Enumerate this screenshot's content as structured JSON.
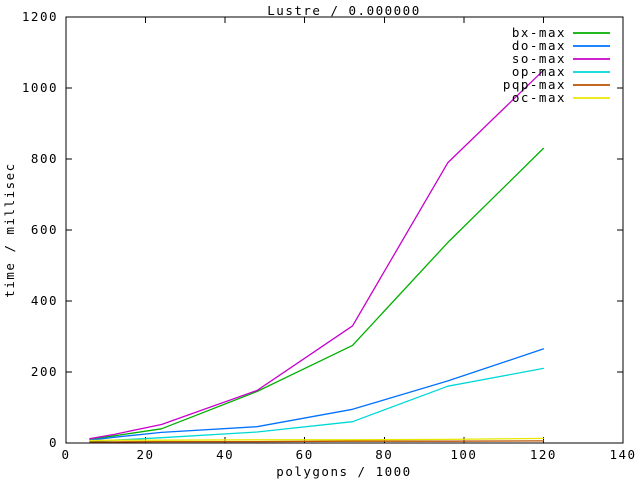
{
  "window": {
    "background": "#ffffff",
    "text_color": "#000000"
  },
  "chart_data": {
    "type": "line",
    "title": "Lustre / 0.000000",
    "xlabel": "polygons / 1000",
    "ylabel": "time / millisec",
    "xlim": [
      0,
      140
    ],
    "ylim": [
      0,
      1200
    ],
    "xticks": [
      0,
      20,
      40,
      60,
      80,
      100,
      120,
      140
    ],
    "yticks": [
      0,
      200,
      400,
      600,
      800,
      1000,
      1200
    ],
    "grid": false,
    "legend_position": "top-right-inside",
    "x": [
      6,
      12,
      24,
      48,
      72,
      96,
      120
    ],
    "series": [
      {
        "name": "bx-max",
        "color": "#00b000",
        "values": [
          10,
          20,
          40,
          145,
          275,
          565,
          830
        ]
      },
      {
        "name": "do-max",
        "color": "#0072ff",
        "values": [
          8,
          16,
          30,
          46,
          95,
          175,
          265
        ]
      },
      {
        "name": "so-max",
        "color": "#c800cc",
        "values": [
          12,
          24,
          52,
          148,
          330,
          790,
          1050
        ]
      },
      {
        "name": "op-max",
        "color": "#00d8d8",
        "values": [
          4,
          8,
          15,
          31,
          60,
          160,
          210
        ]
      },
      {
        "name": "pqp-max",
        "color": "#bc5200",
        "values": [
          3,
          3,
          4,
          4,
          5,
          5,
          6
        ]
      },
      {
        "name": "oc-max",
        "color": "#e8e800",
        "values": [
          7,
          8,
          8,
          9,
          9,
          10,
          13
        ]
      }
    ]
  }
}
